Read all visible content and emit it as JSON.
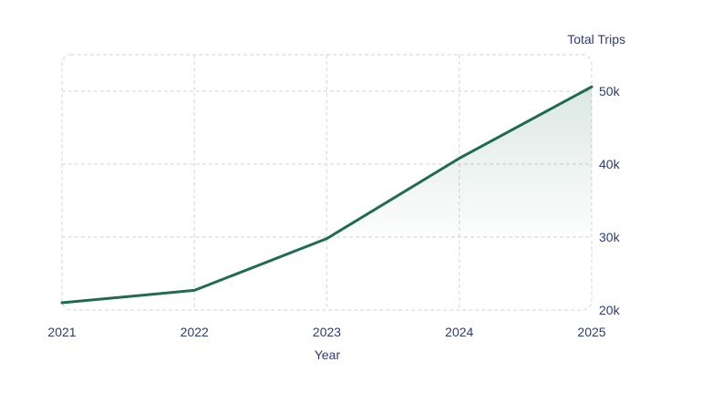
{
  "chart_data": {
    "type": "line",
    "title": "",
    "xlabel": "Year",
    "ylabel": "Total Trips",
    "x": [
      "2021",
      "2022",
      "2023",
      "2024",
      "2025"
    ],
    "series": [
      {
        "values": [
          21000,
          22700,
          29800,
          40800,
          50600
        ]
      }
    ],
    "shaded_region": {
      "x_from": "2023",
      "x_to": "2025"
    },
    "xlim": [
      "2021",
      "2025"
    ],
    "ylim": [
      20000,
      50000
    ],
    "yticks": [
      20000,
      30000,
      40000,
      50000
    ],
    "ytick_labels": [
      "20k",
      "30k",
      "40k",
      "50k"
    ],
    "y_axis_side": "right",
    "grid": true,
    "grid_style": "dashed",
    "legend": "none",
    "colors": {
      "line": "#1f6b52",
      "fill": "#1f6b52",
      "grid": "#d9dce3",
      "text": "#2f3b73"
    }
  }
}
